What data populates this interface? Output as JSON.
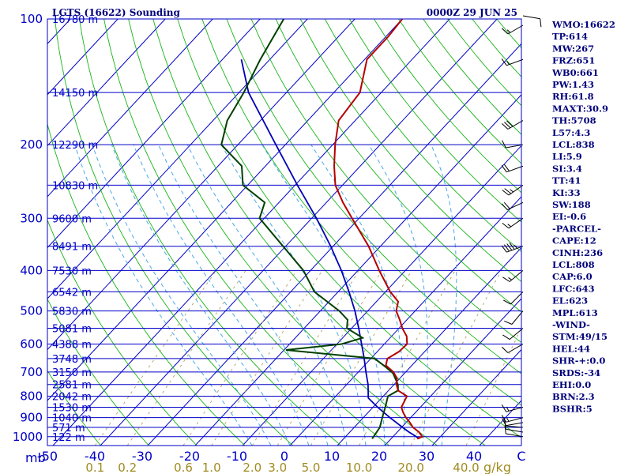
{
  "title": "LGTS (16622) Sounding",
  "datetime": "0000Z 29 JUN 25",
  "units": {
    "pressure": "mb",
    "mixing_ratio": "g/kg"
  },
  "indices": [
    "WMO:16622",
    "TP:614",
    "MW:267",
    "FRZ:651",
    "WB0:661",
    "PW:1.43",
    "RH:61.8",
    "MAXT:30.9",
    "TH:5708",
    "L57:4.3",
    "LCL:838",
    "LI:5.9",
    "SI:3.4",
    "TT:41",
    "KI:33",
    "SW:188",
    "EI:-0.6",
    "-PARCEL-",
    "CAPE:12",
    "CINH:236",
    "LCL:808",
    "CAP:6.0",
    "LFC:643",
    "EL:623",
    "MPL:613",
    "-WIND-",
    "STM:49/15",
    "HEL:44",
    "SHR-+:0.0",
    "SRDS:-34",
    "EHI:0.0",
    "BRN:2.3",
    "BSHR:5"
  ],
  "colors": {
    "temperature": "#b40000",
    "dewpoint": "#004000",
    "parcel": "#0000b4",
    "isobar": "#0000c8",
    "isotherm": "#0000c8",
    "dry_adiabat": "#18b418",
    "moist_adiabat": "#4aa8e8",
    "mixing_ratio": "#b0a060",
    "text": "#00007a"
  },
  "chart_data": {
    "type": "line",
    "subtype": "skew-T log-P diagram",
    "pressure_levels": [
      100,
      200,
      300,
      400,
      500,
      600,
      700,
      800,
      900,
      1000
    ],
    "height_labels": [
      {
        "p": 100,
        "label": "16780 m"
      },
      {
        "p": 150,
        "label": "14150 m"
      },
      {
        "p": 200,
        "label": "12290 m"
      },
      {
        "p": 250,
        "label": "10830 m"
      },
      {
        "p": 300,
        "label": "9600 m"
      },
      {
        "p": 350,
        "label": "8491 m"
      },
      {
        "p": 400,
        "label": "7530 m"
      },
      {
        "p": 450,
        "label": "6542 m"
      },
      {
        "p": 500,
        "label": "5830 m"
      },
      {
        "p": 550,
        "label": "5081 m"
      },
      {
        "p": 600,
        "label": "4388 m"
      },
      {
        "p": 650,
        "label": "3748 m"
      },
      {
        "p": 700,
        "label": "3150 m"
      },
      {
        "p": 750,
        "label": "2581 m"
      },
      {
        "p": 800,
        "label": "2042 m"
      },
      {
        "p": 850,
        "label": "1530 m"
      },
      {
        "p": 900,
        "label": "1040 m"
      },
      {
        "p": 950,
        "label": "571 m"
      },
      {
        "p": 1000,
        "label": "122 m"
      }
    ],
    "temperature_ticks": [
      "-50",
      "-40",
      "-30",
      "-20",
      "-10",
      "0",
      "10",
      "20",
      "30",
      "40",
      "C"
    ],
    "mixing_ratio_ticks": [
      "0.1",
      "0.2",
      "0.6",
      "1.0",
      "2.0",
      "3.0",
      "5.0",
      "10.0",
      "20.0",
      "40.0"
    ],
    "temperature_profile": [
      {
        "p": 1011,
        "t": 25.5
      },
      {
        "p": 1000,
        "t": 26.2
      },
      {
        "p": 975,
        "t": 24.6
      },
      {
        "p": 950,
        "t": 22.4
      },
      {
        "p": 925,
        "t": 20.8
      },
      {
        "p": 900,
        "t": 19.0
      },
      {
        "p": 875,
        "t": 17.4
      },
      {
        "p": 850,
        "t": 16.0
      },
      {
        "p": 800,
        "t": 15.0
      },
      {
        "p": 775,
        "t": 12.0
      },
      {
        "p": 750,
        "t": 10.5
      },
      {
        "p": 725,
        "t": 9.4
      },
      {
        "p": 700,
        "t": 7.4
      },
      {
        "p": 675,
        "t": 4.5
      },
      {
        "p": 650,
        "t": 3.5
      },
      {
        "p": 625,
        "t": 4.6
      },
      {
        "p": 600,
        "t": 4.8
      },
      {
        "p": 575,
        "t": 3.2
      },
      {
        "p": 550,
        "t": 0.7
      },
      {
        "p": 525,
        "t": -1.5
      },
      {
        "p": 500,
        "t": -4.0
      },
      {
        "p": 475,
        "t": -5.4
      },
      {
        "p": 450,
        "t": -9.0
      },
      {
        "p": 400,
        "t": -15.5
      },
      {
        "p": 350,
        "t": -22.5
      },
      {
        "p": 300,
        "t": -31.5
      },
      {
        "p": 275,
        "t": -36.5
      },
      {
        "p": 250,
        "t": -41.5
      },
      {
        "p": 225,
        "t": -45.5
      },
      {
        "p": 200,
        "t": -49.5
      },
      {
        "p": 175,
        "t": -53.5
      },
      {
        "p": 150,
        "t": -54.5
      },
      {
        "p": 125,
        "t": -59.5
      },
      {
        "p": 110,
        "t": -59.5
      },
      {
        "p": 100,
        "t": -60.0
      }
    ],
    "dewpoint_profile": [
      {
        "p": 1011,
        "t": 16.0
      },
      {
        "p": 1000,
        "t": 15.9
      },
      {
        "p": 950,
        "t": 15.4
      },
      {
        "p": 900,
        "t": 14.0
      },
      {
        "p": 850,
        "t": 12.6
      },
      {
        "p": 800,
        "t": 11.0
      },
      {
        "p": 775,
        "t": 12.0
      },
      {
        "p": 750,
        "t": 10.8
      },
      {
        "p": 700,
        "t": 7.2
      },
      {
        "p": 650,
        "t": 0.8
      },
      {
        "p": 620,
        "t": -19.6
      },
      {
        "p": 600,
        "t": -9.0
      },
      {
        "p": 580,
        "t": -5.8
      },
      {
        "p": 550,
        "t": -11.0
      },
      {
        "p": 525,
        "t": -12.5
      },
      {
        "p": 500,
        "t": -16.0
      },
      {
        "p": 450,
        "t": -25.0
      },
      {
        "p": 400,
        "t": -31.5
      },
      {
        "p": 300,
        "t": -51.0
      },
      {
        "p": 275,
        "t": -53.0
      },
      {
        "p": 250,
        "t": -61.0
      },
      {
        "p": 225,
        "t": -65.0
      },
      {
        "p": 200,
        "t": -73.5
      },
      {
        "p": 175,
        "t": -77.0
      },
      {
        "p": 150,
        "t": -79.0
      },
      {
        "p": 125,
        "t": -82.0
      },
      {
        "p": 100,
        "t": -85.0
      }
    ],
    "parcel_profile": [
      {
        "p": 1011,
        "t": 26.0
      },
      {
        "p": 975,
        "t": 22.5
      },
      {
        "p": 950,
        "t": 20.2
      },
      {
        "p": 900,
        "t": 15.6
      },
      {
        "p": 850,
        "t": 11.0
      },
      {
        "p": 808,
        "t": 7.2
      },
      {
        "p": 750,
        "t": 4.5
      },
      {
        "p": 700,
        "t": 1.6
      },
      {
        "p": 650,
        "t": -1.4
      },
      {
        "p": 600,
        "t": -4.8
      },
      {
        "p": 550,
        "t": -8.5
      },
      {
        "p": 500,
        "t": -12.7
      },
      {
        "p": 450,
        "t": -17.7
      },
      {
        "p": 400,
        "t": -23.5
      },
      {
        "p": 350,
        "t": -30.5
      },
      {
        "p": 300,
        "t": -39.0
      },
      {
        "p": 250,
        "t": -49.5
      },
      {
        "p": 200,
        "t": -62.0
      },
      {
        "p": 150,
        "t": -78.0
      },
      {
        "p": 125,
        "t": -86.0
      }
    ],
    "wind_barbs": [
      {
        "p": 1000,
        "dir": 280,
        "kt": 10
      },
      {
        "p": 975,
        "dir": 280,
        "kt": 10
      },
      {
        "p": 950,
        "dir": 275,
        "kt": 10
      },
      {
        "p": 925,
        "dir": 260,
        "kt": 10
      },
      {
        "p": 900,
        "dir": 255,
        "kt": 15
      },
      {
        "p": 850,
        "dir": 255,
        "kt": 15
      },
      {
        "p": 600,
        "dir": 240,
        "kt": 10
      },
      {
        "p": 550,
        "dir": 230,
        "kt": 10
      },
      {
        "p": 500,
        "dir": 220,
        "kt": 10
      },
      {
        "p": 450,
        "dir": 225,
        "kt": 10
      },
      {
        "p": 400,
        "dir": 230,
        "kt": 15
      },
      {
        "p": 350,
        "dir": 250,
        "kt": 45
      },
      {
        "p": 300,
        "dir": 235,
        "kt": 15
      },
      {
        "p": 275,
        "dir": 245,
        "kt": 20
      },
      {
        "p": 250,
        "dir": 235,
        "kt": 25
      },
      {
        "p": 225,
        "dir": 250,
        "kt": 20
      },
      {
        "p": 200,
        "dir": 260,
        "kt": 10
      },
      {
        "p": 175,
        "dir": 240,
        "kt": 30
      },
      {
        "p": 125,
        "dir": 250,
        "kt": 15
      },
      {
        "p": 100,
        "dir": 240,
        "kt": 15
      },
      {
        "p": 80,
        "dir": 100,
        "kt": 10
      }
    ]
  }
}
